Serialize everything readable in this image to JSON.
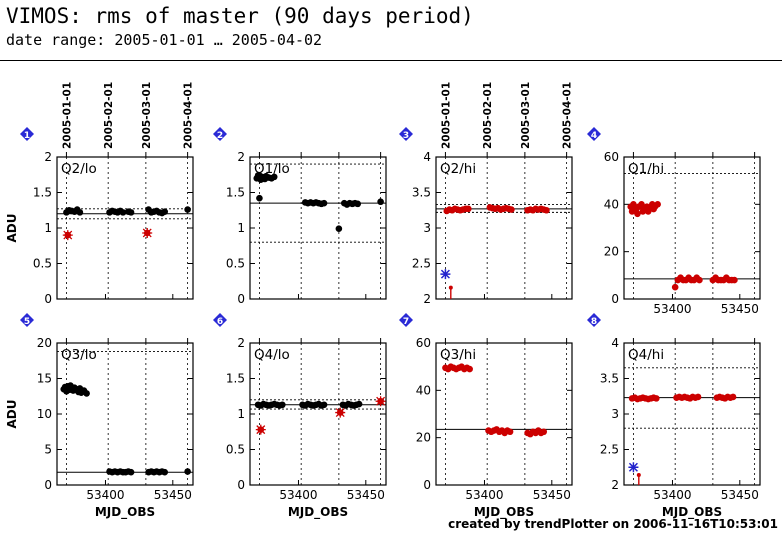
{
  "header": {
    "title": "VIMOS: rms of master (90 days period)",
    "subtitle": "date range: 2005-01-01 … 2005-04-02"
  },
  "footer": {
    "credit": "created by trendPlotter on 2006-11-16T10:53:01"
  },
  "colors": {
    "ok": "#000000",
    "outlier": "#cc0000",
    "marker": "#2a2ad6",
    "highlight": "#2222cc"
  },
  "chart_data": [
    {
      "type": "scatter",
      "panel": 1,
      "label": "Q2/lo",
      "ylabel": "ADU",
      "xlabel": "",
      "xlim": [
        53364,
        53465
      ],
      "ylim": [
        0,
        2
      ],
      "yticks": [
        0,
        0.5,
        1,
        1.5,
        2
      ],
      "ytick_labels": [
        "0",
        "0.5",
        "1",
        "1.5",
        "2"
      ],
      "xticks": [
        53400,
        53450
      ],
      "xtick_labels": [
        "",
        ""
      ],
      "date_ticks": [
        {
          "x": 53371,
          "label": "2005-01-01"
        },
        {
          "x": 53402,
          "label": "2005-02-01"
        },
        {
          "x": 53430,
          "label": "2005-03-01"
        },
        {
          "x": 53461,
          "label": "2005-04-01"
        }
      ],
      "median": 1.2,
      "limits": [
        1.13,
        1.27
      ],
      "series": [
        {
          "status": "ok",
          "x": [
            53371,
            53373,
            53375,
            53377,
            53379,
            53381,
            53403,
            53405,
            53407,
            53409,
            53411,
            53413,
            53417,
            53419,
            53432,
            53434,
            53436,
            53438,
            53440,
            53442,
            53444,
            53461
          ],
          "y": [
            1.22,
            1.25,
            1.24,
            1.23,
            1.26,
            1.22,
            1.22,
            1.24,
            1.23,
            1.22,
            1.24,
            1.22,
            1.23,
            1.22,
            1.26,
            1.22,
            1.23,
            1.24,
            1.22,
            1.21,
            1.23,
            1.26
          ]
        },
        {
          "status": "outlier",
          "x": [
            53372,
            53431
          ],
          "y": [
            0.9,
            0.93
          ]
        }
      ]
    },
    {
      "type": "scatter",
      "panel": 2,
      "label": "Q1/lo",
      "ylabel": "",
      "xlabel": "",
      "xlim": [
        53364,
        53465
      ],
      "ylim": [
        0,
        2
      ],
      "yticks": [
        0,
        0.5,
        1,
        1.5,
        2
      ],
      "ytick_labels": [
        "0",
        "0.5",
        "1",
        "1.5",
        "2"
      ],
      "xticks": [
        53400,
        53450
      ],
      "xtick_labels": [
        "",
        ""
      ],
      "date_ticks": [
        {
          "x": 53371,
          "label": ""
        },
        {
          "x": 53402,
          "label": ""
        },
        {
          "x": 53430,
          "label": ""
        },
        {
          "x": 53461,
          "label": ""
        }
      ],
      "median": 1.35,
      "limits": [
        0.8,
        1.9
      ],
      "series": [
        {
          "status": "ok",
          "x": [
            53369,
            53370,
            53372,
            53373,
            53375,
            53376,
            53378,
            53380,
            53382,
            53371,
            53405,
            53407,
            53409,
            53411,
            53413,
            53415,
            53417,
            53419,
            53430,
            53434,
            53436,
            53438,
            53440,
            53442,
            53444,
            53461
          ],
          "y": [
            1.7,
            1.74,
            1.68,
            1.72,
            1.69,
            1.73,
            1.71,
            1.7,
            1.72,
            1.42,
            1.36,
            1.35,
            1.36,
            1.35,
            1.36,
            1.35,
            1.34,
            1.35,
            0.99,
            1.35,
            1.33,
            1.35,
            1.34,
            1.35,
            1.34,
            1.37
          ]
        }
      ]
    },
    {
      "type": "scatter",
      "panel": 3,
      "label": "Q2/hi",
      "ylabel": "",
      "xlabel": "",
      "xlim": [
        53364,
        53465
      ],
      "ylim": [
        2,
        4
      ],
      "yticks": [
        2,
        2.5,
        3,
        3.5,
        4
      ],
      "ytick_labels": [
        "2",
        "2.5",
        "3",
        "3.5",
        "4"
      ],
      "xticks": [
        53400,
        53450
      ],
      "xtick_labels": [
        "",
        ""
      ],
      "date_ticks": [
        {
          "x": 53371,
          "label": "2005-01-01"
        },
        {
          "x": 53402,
          "label": "2005-02-01"
        },
        {
          "x": 53430,
          "label": "2005-03-01"
        },
        {
          "x": 53461,
          "label": "2005-04-01"
        }
      ],
      "median": 3.27,
      "limits": [
        3.22,
        3.33
      ],
      "series": [
        {
          "status": "outlier",
          "x": [
            53372,
            53374,
            53376,
            53378,
            53380,
            53382,
            53384,
            53386,
            53388,
            53404,
            53406,
            53408,
            53410,
            53412,
            53414,
            53416,
            53418,
            53420,
            53432,
            53434,
            53436,
            53438,
            53440,
            53442,
            53444,
            53446
          ],
          "y": [
            3.24,
            3.26,
            3.25,
            3.27,
            3.26,
            3.25,
            3.26,
            3.27,
            3.27,
            3.29,
            3.28,
            3.27,
            3.28,
            3.26,
            3.27,
            3.28,
            3.27,
            3.26,
            3.25,
            3.26,
            3.25,
            3.27,
            3.26,
            3.27,
            3.26,
            3.25
          ]
        },
        {
          "status": "highlight",
          "x": [
            53371
          ],
          "y": [
            2.35
          ]
        },
        {
          "status": "below-range",
          "x": [
            53375
          ],
          "y": [
            2.16
          ]
        }
      ]
    },
    {
      "type": "scatter",
      "panel": 4,
      "label": "Q1/hi",
      "ylabel": "",
      "xlabel": "",
      "xlim": [
        53364,
        53465
      ],
      "ylim": [
        0,
        60
      ],
      "yticks": [
        0,
        20,
        40,
        60
      ],
      "ytick_labels": [
        "0",
        "20",
        "40",
        "60"
      ],
      "xticks": [
        53400,
        53450
      ],
      "xtick_labels": [
        "53400",
        "53450"
      ],
      "date_ticks": [
        {
          "x": 53371,
          "label": ""
        },
        {
          "x": 53402,
          "label": ""
        },
        {
          "x": 53430,
          "label": ""
        },
        {
          "x": 53461,
          "label": ""
        }
      ],
      "median": 8.5,
      "limits": [
        8.5,
        53
      ],
      "series": [
        {
          "status": "outlier",
          "x": [
            53369,
            53371,
            53373,
            53375,
            53377,
            53379,
            53381,
            53383,
            53385,
            53387,
            53389,
            53370,
            53374,
            53378,
            53382,
            53386,
            53402,
            53404,
            53406,
            53408,
            53410,
            53412,
            53414,
            53416,
            53418,
            53420,
            53430,
            53432,
            53434,
            53436,
            53438,
            53440,
            53442,
            53444,
            53446
          ],
          "y": [
            39,
            40,
            38,
            39,
            40,
            38,
            39,
            38,
            40,
            39,
            40,
            37,
            36,
            37,
            37,
            38,
            5,
            8,
            9,
            8,
            8,
            9,
            8,
            8,
            9,
            8,
            8,
            9,
            8,
            8,
            8,
            9,
            8,
            8,
            8
          ]
        }
      ]
    },
    {
      "type": "scatter",
      "panel": 5,
      "label": "Q3/lo",
      "ylabel": "ADU",
      "xlabel": "MJD_OBS",
      "xlim": [
        53364,
        53465
      ],
      "ylim": [
        0,
        20
      ],
      "yticks": [
        0,
        5,
        10,
        15,
        20
      ],
      "ytick_labels": [
        "0",
        "5",
        "10",
        "15",
        "20"
      ],
      "xticks": [
        53400,
        53450
      ],
      "xtick_labels": [
        "53400",
        "53450"
      ],
      "date_ticks": [
        {
          "x": 53371,
          "label": ""
        },
        {
          "x": 53402,
          "label": ""
        },
        {
          "x": 53430,
          "label": ""
        },
        {
          "x": 53461,
          "label": ""
        }
      ],
      "median": 1.8,
      "limits": [
        1.8,
        18.8
      ],
      "series": [
        {
          "status": "ok",
          "x": [
            53369,
            53370,
            53371,
            53372,
            53373,
            53374,
            53375,
            53376,
            53377,
            53378,
            53380,
            53381,
            53382,
            53384,
            53386,
            53403,
            53405,
            53407,
            53409,
            53411,
            53413,
            53415,
            53417,
            53419,
            53432,
            53434,
            53436,
            53438,
            53440,
            53442,
            53444,
            53461
          ],
          "y": [
            13.5,
            13.8,
            13.2,
            13.9,
            13.4,
            14.0,
            13.6,
            13.3,
            13.7,
            13.5,
            13.1,
            13.6,
            13.0,
            13.3,
            12.9,
            1.9,
            1.8,
            1.9,
            1.8,
            1.9,
            1.8,
            1.8,
            1.9,
            1.8,
            1.8,
            1.9,
            1.8,
            1.9,
            1.8,
            1.9,
            1.8,
            1.9
          ]
        }
      ]
    },
    {
      "type": "scatter",
      "panel": 6,
      "label": "Q4/lo",
      "ylabel": "",
      "xlabel": "MJD_OBS",
      "xlim": [
        53364,
        53465
      ],
      "ylim": [
        0,
        2
      ],
      "yticks": [
        0,
        0.5,
        1,
        1.5,
        2
      ],
      "ytick_labels": [
        "0",
        "0.5",
        "1",
        "1.5",
        "2"
      ],
      "xticks": [
        53400,
        53450
      ],
      "xtick_labels": [
        "53400",
        "53450"
      ],
      "date_ticks": [
        {
          "x": 53371,
          "label": ""
        },
        {
          "x": 53402,
          "label": ""
        },
        {
          "x": 53430,
          "label": ""
        },
        {
          "x": 53461,
          "label": ""
        }
      ],
      "median": 1.13,
      "limits": [
        1.07,
        1.2
      ],
      "series": [
        {
          "status": "ok",
          "x": [
            53370,
            53372,
            53374,
            53376,
            53378,
            53380,
            53382,
            53384,
            53386,
            53388,
            53403,
            53405,
            53407,
            53409,
            53411,
            53413,
            53415,
            53417,
            53419,
            53433,
            53435,
            53437,
            53439,
            53441,
            53443,
            53445
          ],
          "y": [
            1.13,
            1.12,
            1.14,
            1.13,
            1.12,
            1.13,
            1.14,
            1.13,
            1.12,
            1.13,
            1.13,
            1.12,
            1.14,
            1.13,
            1.12,
            1.13,
            1.14,
            1.12,
            1.13,
            1.13,
            1.12,
            1.14,
            1.13,
            1.12,
            1.13,
            1.14
          ]
        },
        {
          "status": "outlier",
          "x": [
            53372,
            53431,
            53461
          ],
          "y": [
            0.78,
            1.02,
            1.18
          ]
        }
      ]
    },
    {
      "type": "scatter",
      "panel": 7,
      "label": "Q3/hi",
      "ylabel": "",
      "xlabel": "MJD_OBS",
      "xlim": [
        53364,
        53465
      ],
      "ylim": [
        0,
        60
      ],
      "yticks": [
        0,
        20,
        40,
        60
      ],
      "ytick_labels": [
        "0",
        "20",
        "40",
        "60"
      ],
      "xticks": [
        53400,
        53450
      ],
      "xtick_labels": [
        "53400",
        "53450"
      ],
      "date_ticks": [
        {
          "x": 53371,
          "label": ""
        },
        {
          "x": 53402,
          "label": ""
        },
        {
          "x": 53430,
          "label": ""
        },
        {
          "x": 53461,
          "label": ""
        }
      ],
      "median": 23.5,
      "limits": [
        23.5,
        23.5
      ],
      "series": [
        {
          "status": "outlier",
          "x": [
            53371,
            53373,
            53375,
            53377,
            53379,
            53381,
            53383,
            53385,
            53387,
            53389,
            53403,
            53405,
            53407,
            53409,
            53411,
            53413,
            53415,
            53417,
            53419,
            53432,
            53434,
            53436,
            53438,
            53440,
            53442,
            53444
          ],
          "y": [
            49.5,
            49,
            50,
            49.5,
            49,
            49.5,
            50,
            49,
            49.5,
            49,
            23,
            22.5,
            23,
            23.5,
            22.5,
            23,
            22,
            23,
            22.5,
            22,
            21.5,
            22.5,
            22,
            23,
            22,
            22.5
          ]
        }
      ]
    },
    {
      "type": "scatter",
      "panel": 8,
      "label": "Q4/hi",
      "ylabel": "",
      "xlabel": "MJD_OBS",
      "xlim": [
        53364,
        53465
      ],
      "ylim": [
        2,
        4
      ],
      "yticks": [
        2,
        2.5,
        3,
        3.5,
        4
      ],
      "ytick_labels": [
        "2",
        "2.5",
        "3",
        "3.5",
        "4"
      ],
      "xticks": [
        53400,
        53450
      ],
      "xtick_labels": [
        "53400",
        "53450"
      ],
      "date_ticks": [
        {
          "x": 53371,
          "label": ""
        },
        {
          "x": 53402,
          "label": ""
        },
        {
          "x": 53430,
          "label": ""
        },
        {
          "x": 53461,
          "label": ""
        }
      ],
      "median": 3.23,
      "limits": [
        2.8,
        3.65
      ],
      "series": [
        {
          "status": "outlier",
          "x": [
            53370,
            53372,
            53374,
            53376,
            53378,
            53380,
            53382,
            53384,
            53386,
            53388,
            53403,
            53405,
            53407,
            53409,
            53411,
            53413,
            53415,
            53417,
            53419,
            53433,
            53435,
            53437,
            53439,
            53441,
            53443,
            53445
          ],
          "y": [
            3.22,
            3.23,
            3.21,
            3.22,
            3.23,
            3.22,
            3.21,
            3.22,
            3.23,
            3.22,
            3.23,
            3.24,
            3.23,
            3.24,
            3.23,
            3.22,
            3.24,
            3.23,
            3.24,
            3.23,
            3.24,
            3.23,
            3.22,
            3.24,
            3.23,
            3.24
          ]
        },
        {
          "status": "highlight",
          "x": [
            53371
          ],
          "y": [
            2.25
          ]
        },
        {
          "status": "below-range",
          "x": [
            53375
          ],
          "y": [
            2.14
          ]
        }
      ]
    }
  ]
}
